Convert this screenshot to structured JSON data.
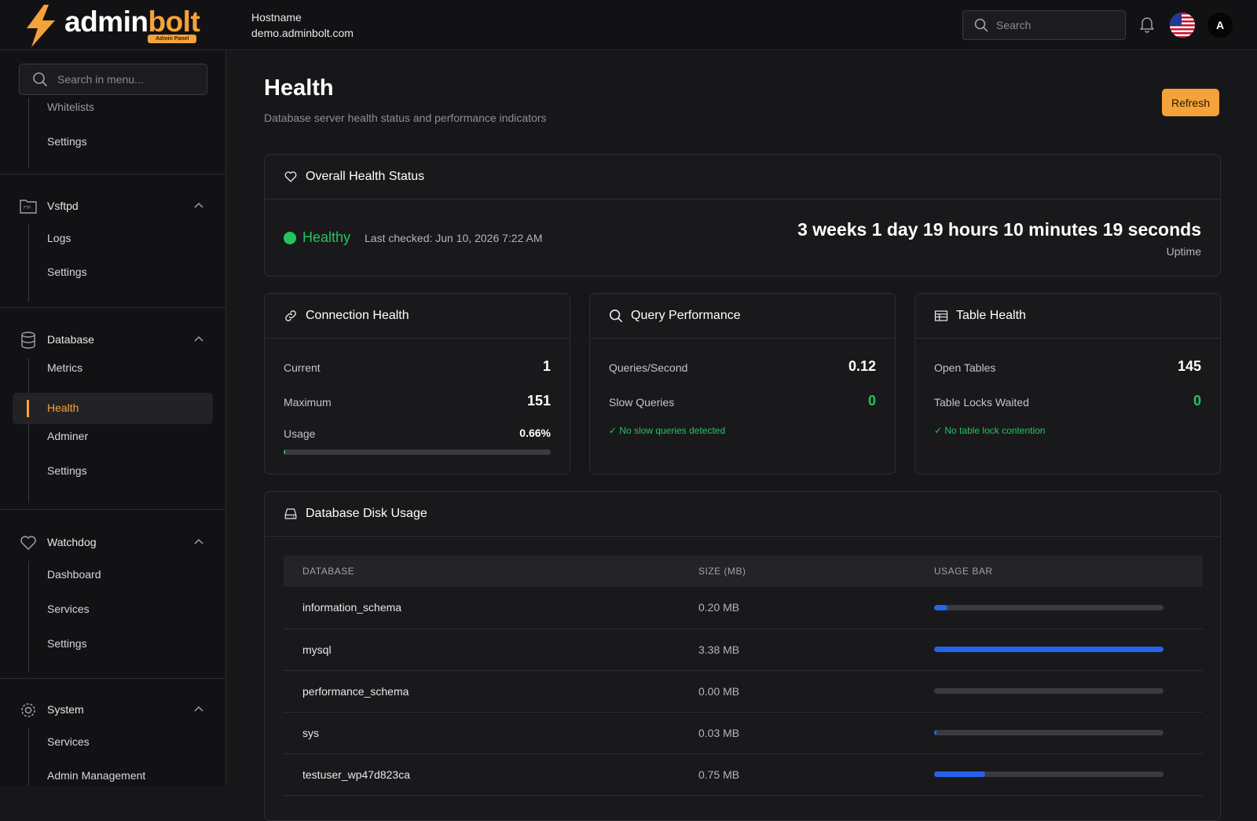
{
  "brand": {
    "name_a": "admin",
    "name_b": "bolt",
    "badge": "Admin Panel",
    "accent": "#f5a23a"
  },
  "header": {
    "host_label": "Hostname",
    "host_value": "demo.adminbolt.com",
    "search_placeholder": "Search",
    "avatar_initial": "A"
  },
  "sidebar": {
    "search_placeholder": "Search in menu...",
    "partial_item": "Whitelists",
    "groups": [
      {
        "label": "",
        "items": [
          "Settings"
        ]
      },
      {
        "label": "Vsftpd",
        "items": [
          "Logs",
          "Settings"
        ]
      },
      {
        "label": "Database",
        "items": [
          "Metrics",
          "Health",
          "Adminer",
          "Settings"
        ],
        "active": "Health"
      },
      {
        "label": "Watchdog",
        "items": [
          "Dashboard",
          "Services",
          "Settings"
        ]
      },
      {
        "label": "System",
        "items": [
          "Services",
          "Admin Management"
        ]
      }
    ]
  },
  "page": {
    "title": "Health",
    "subtitle": "Database server health status and performance indicators",
    "refresh_label": "Refresh"
  },
  "overall": {
    "title": "Overall Health Status",
    "status": "Healthy",
    "status_color": "#22c55e",
    "last_checked": "Last checked: Jun 10, 2026 7:22 AM",
    "uptime": "3 weeks 1 day 19 hours 10 minutes 19 seconds",
    "uptime_label": "Uptime"
  },
  "connection": {
    "title": "Connection Health",
    "current_label": "Current",
    "current": "1",
    "max_label": "Maximum",
    "max": "151",
    "usage_label": "Usage",
    "usage": "0.66%",
    "usage_fraction": 0.0066
  },
  "query": {
    "title": "Query Performance",
    "qps_label": "Queries/Second",
    "qps": "0.12",
    "slow_label": "Slow Queries",
    "slow": "0",
    "note": "✓ No slow queries detected"
  },
  "table_health": {
    "title": "Table Health",
    "open_label": "Open Tables",
    "open": "145",
    "locks_label": "Table Locks Waited",
    "locks": "0",
    "note": "✓ No table lock contention"
  },
  "disk": {
    "title": "Database Disk Usage",
    "columns": [
      "DATABASE",
      "SIZE (MB)",
      "USAGE BAR"
    ],
    "rows": [
      {
        "name": "information_schema",
        "size": "0.20 MB",
        "fraction": 0.059
      },
      {
        "name": "mysql",
        "size": "3.38 MB",
        "fraction": 1.0
      },
      {
        "name": "performance_schema",
        "size": "0.00 MB",
        "fraction": 0.0
      },
      {
        "name": "sys",
        "size": "0.03 MB",
        "fraction": 0.009
      },
      {
        "name": "testuser_wp47d823ca",
        "size": "0.75 MB",
        "fraction": 0.222
      }
    ]
  }
}
